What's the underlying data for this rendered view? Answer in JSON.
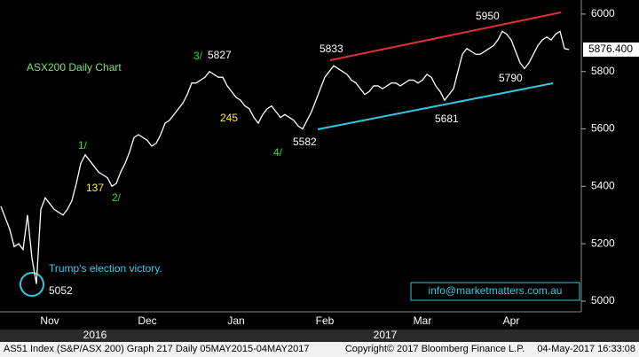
{
  "chart_data": {
    "type": "line",
    "title": "ASX200 Daily Chart",
    "categories": [
      null,
      null,
      null,
      null,
      null,
      null,
      null,
      null,
      null,
      null,
      null,
      "Nov",
      null,
      null,
      null,
      null,
      null,
      null,
      null,
      null,
      null,
      null,
      null,
      null,
      null,
      null,
      null,
      null,
      null,
      null,
      null,
      null,
      null,
      "Dec",
      null,
      null,
      null,
      null,
      null,
      null,
      null,
      null,
      null,
      null,
      null,
      null,
      null,
      null,
      null,
      null,
      null,
      null,
      null,
      "Jan",
      null,
      null,
      null,
      null,
      null,
      null,
      null,
      null,
      null,
      null,
      null,
      null,
      null,
      null,
      null,
      null,
      null,
      null,
      null,
      "Feb",
      null,
      null,
      null,
      null,
      null,
      null,
      null,
      null,
      null,
      null,
      null,
      null,
      null,
      null,
      null,
      null,
      null,
      null,
      null,
      null,
      null,
      "Mar",
      null,
      null,
      null,
      null,
      null,
      null,
      null,
      null,
      null,
      null,
      null,
      null,
      null,
      null,
      null,
      null,
      null,
      null,
      null,
      "Apr",
      null,
      null,
      null,
      null,
      null,
      null,
      null,
      null,
      null,
      null,
      null,
      null,
      null
    ],
    "series": [
      {
        "name": "AS51 Index",
        "color": "#ffffff",
        "values": [
          5330,
          5290,
          5250,
          5190,
          5200,
          5180,
          5300,
          5150,
          5060,
          5320,
          5360,
          5340,
          5320,
          5310,
          5300,
          5320,
          5350,
          5410,
          5480,
          5510,
          5490,
          5470,
          5450,
          5440,
          5430,
          5400,
          5410,
          5450,
          5480,
          5520,
          5570,
          5580,
          5570,
          5560,
          5540,
          5550,
          5580,
          5620,
          5630,
          5650,
          5670,
          5690,
          5720,
          5760,
          5760,
          5770,
          5780,
          5800,
          5790,
          5780,
          5780,
          5750,
          5730,
          5710,
          5700,
          5680,
          5670,
          5640,
          5620,
          5650,
          5670,
          5680,
          5660,
          5640,
          5650,
          5640,
          5630,
          5610,
          5600,
          5630,
          5660,
          5700,
          5740,
          5780,
          5800,
          5820,
          5810,
          5800,
          5790,
          5770,
          5760,
          5740,
          5720,
          5730,
          5750,
          5750,
          5740,
          5750,
          5760,
          5760,
          5750,
          5760,
          5770,
          5770,
          5760,
          5770,
          5790,
          5780,
          5750,
          5730,
          5700,
          5720,
          5740,
          5800,
          5860,
          5880,
          5870,
          5860,
          5860,
          5870,
          5880,
          5890,
          5910,
          5940,
          5930,
          5910,
          5870,
          5830,
          5810,
          5830,
          5860,
          5890,
          5910,
          5920,
          5910,
          5930,
          5940,
          5880,
          5876.4
        ]
      }
    ],
    "last_price_label": "5876.400",
    "ylim": [
      4963,
      6049
    ],
    "yticks": [
      5000,
      5200,
      5400,
      5600,
      5800,
      6000
    ],
    "years": [
      "2016",
      "2017"
    ],
    "annotations": [
      {
        "text": "ASX200 Daily Chart",
        "color": "#7ee07e"
      },
      {
        "text": "1/",
        "color": "#33dd33"
      },
      {
        "text": "137",
        "color": "#ffee33"
      },
      {
        "text": "2/",
        "color": "#33dd33"
      },
      {
        "text": "3/",
        "color": "#33dd33"
      },
      {
        "text": "5827",
        "color": "#ffffff"
      },
      {
        "text": "245",
        "color": "#ffee33"
      },
      {
        "text": "4/",
        "color": "#33dd33"
      },
      {
        "text": "5582",
        "color": "#ffffff"
      },
      {
        "text": "5833",
        "color": "#ffffff"
      },
      {
        "text": "5681",
        "color": "#ffffff"
      },
      {
        "text": "5950",
        "color": "#ffffff"
      },
      {
        "text": "5790",
        "color": "#ffffff"
      },
      {
        "text": "Trump's election victory.",
        "color": "#33ccee"
      },
      {
        "text": "5052",
        "color": "#ffffff"
      }
    ],
    "watermark": "info@marketmatters.com.au",
    "footer": {
      "left": "AS51 Index (S&P/ASX 200) Graph 217  Daily 05MAY2015-04MAY2017",
      "center": "Copyright© 2017 Bloomberg Finance L.P.",
      "right": "04-May-2017 16:33:08"
    }
  }
}
